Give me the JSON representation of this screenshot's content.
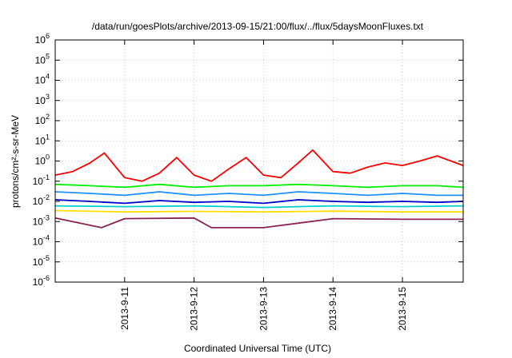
{
  "chart_data": {
    "type": "line",
    "title": "/data/run/goesPlots/archive/2013-09-15/21:00/flux/../flux/5daysMoonFluxes.txt",
    "xlabel": "Coordinated Universal Time (UTC)",
    "ylabel": "protons/cm²-s-sr-MeV",
    "y_scale": "log",
    "ylim": [
      1e-06,
      1000000.0
    ],
    "xlim": [
      "2013-09-10 00:00",
      "2013-09-15 21:00"
    ],
    "grid": true,
    "legend": "none",
    "y_ticks": [
      {
        "base": "10",
        "exp": "-6",
        "value": 1e-06
      },
      {
        "base": "10",
        "exp": "-5",
        "value": 1e-05
      },
      {
        "base": "10",
        "exp": "-4",
        "value": 0.0001
      },
      {
        "base": "10",
        "exp": "-3",
        "value": 0.001
      },
      {
        "base": "10",
        "exp": "-2",
        "value": 0.01
      },
      {
        "base": "10",
        "exp": "-1",
        "value": 0.1
      },
      {
        "base": "10",
        "exp": "0",
        "value": 1
      },
      {
        "base": "10",
        "exp": "1",
        "value": 10
      },
      {
        "base": "10",
        "exp": "2",
        "value": 100
      },
      {
        "base": "10",
        "exp": "3",
        "value": 1000
      },
      {
        "base": "10",
        "exp": "4",
        "value": 10000
      },
      {
        "base": "10",
        "exp": "5",
        "value": 100000
      },
      {
        "base": "10",
        "exp": "6",
        "value": 1000000
      }
    ],
    "x_ticks": [
      {
        "label": "2013-9-11",
        "date": "2013-09-11 00:00"
      },
      {
        "label": "2013-9-12",
        "date": "2013-09-12 00:00"
      },
      {
        "label": "2013-9-13",
        "date": "2013-09-13 00:00"
      },
      {
        "label": "2013-9-14",
        "date": "2013-09-14 00:00"
      },
      {
        "label": "2013-9-15",
        "date": "2013-09-15 00:00"
      }
    ],
    "series": [
      {
        "color": "#ff0000",
        "x": [
          "2013-09-10 00:00",
          "2013-09-10 06:00",
          "2013-09-10 12:00",
          "2013-09-10 17:00",
          "2013-09-11 00:00",
          "2013-09-11 06:00",
          "2013-09-11 12:00",
          "2013-09-11 18:00",
          "2013-09-12 00:00",
          "2013-09-12 06:00",
          "2013-09-12 12:00",
          "2013-09-12 18:00",
          "2013-09-13 00:00",
          "2013-09-13 06:00",
          "2013-09-13 12:00",
          "2013-09-13 17:00",
          "2013-09-14 00:00",
          "2013-09-14 06:00",
          "2013-09-14 12:00",
          "2013-09-14 18:00",
          "2013-09-15 00:00",
          "2013-09-15 06:00",
          "2013-09-15 12:00",
          "2013-09-15 21:00"
        ],
        "y": [
          0.2,
          0.3,
          0.8,
          2.5,
          0.15,
          0.1,
          0.25,
          1.5,
          0.2,
          0.1,
          0.4,
          1.5,
          0.2,
          0.15,
          0.8,
          3.5,
          0.3,
          0.25,
          0.5,
          0.8,
          0.6,
          1.0,
          1.8,
          0.6
        ]
      },
      {
        "color": "#00ee00",
        "x": [
          "2013-09-10 00:00",
          "2013-09-10 12:00",
          "2013-09-11 00:00",
          "2013-09-11 12:00",
          "2013-09-12 00:00",
          "2013-09-12 12:00",
          "2013-09-13 00:00",
          "2013-09-13 12:00",
          "2013-09-14 00:00",
          "2013-09-14 12:00",
          "2013-09-15 00:00",
          "2013-09-15 12:00",
          "2013-09-15 21:00"
        ],
        "y": [
          0.07,
          0.06,
          0.05,
          0.07,
          0.05,
          0.06,
          0.06,
          0.07,
          0.06,
          0.05,
          0.06,
          0.06,
          0.05
        ]
      },
      {
        "color": "#1e90ff",
        "x": [
          "2013-09-10 00:00",
          "2013-09-10 12:00",
          "2013-09-11 00:00",
          "2013-09-11 12:00",
          "2013-09-12 00:00",
          "2013-09-12 12:00",
          "2013-09-13 00:00",
          "2013-09-13 12:00",
          "2013-09-14 00:00",
          "2013-09-14 12:00",
          "2013-09-15 00:00",
          "2013-09-15 12:00",
          "2013-09-15 21:00"
        ],
        "y": [
          0.03,
          0.025,
          0.02,
          0.03,
          0.02,
          0.025,
          0.02,
          0.03,
          0.025,
          0.02,
          0.025,
          0.02,
          0.02
        ]
      },
      {
        "color": "#0000cc",
        "x": [
          "2013-09-10 00:00",
          "2013-09-10 12:00",
          "2013-09-11 00:00",
          "2013-09-11 12:00",
          "2013-09-12 00:00",
          "2013-09-12 12:00",
          "2013-09-13 00:00",
          "2013-09-13 12:00",
          "2013-09-14 00:00",
          "2013-09-14 12:00",
          "2013-09-15 00:00",
          "2013-09-15 12:00",
          "2013-09-15 21:00"
        ],
        "y": [
          0.012,
          0.01,
          0.008,
          0.011,
          0.009,
          0.01,
          0.008,
          0.012,
          0.01,
          0.009,
          0.01,
          0.009,
          0.01
        ]
      },
      {
        "color": "#00cccc",
        "x": [
          "2013-09-10 00:00",
          "2013-09-11 00:00",
          "2013-09-12 00:00",
          "2013-09-13 00:00",
          "2013-09-14 00:00",
          "2013-09-15 00:00",
          "2013-09-15 21:00"
        ],
        "y": [
          0.006,
          0.0055,
          0.006,
          0.005,
          0.006,
          0.0055,
          0.006
        ]
      },
      {
        "color": "#ffdd00",
        "x": [
          "2013-09-10 00:00",
          "2013-09-11 00:00",
          "2013-09-12 00:00",
          "2013-09-13 00:00",
          "2013-09-14 00:00",
          "2013-09-15 00:00",
          "2013-09-15 21:00"
        ],
        "y": [
          0.0035,
          0.003,
          0.0032,
          0.003,
          0.0033,
          0.003,
          0.003
        ]
      },
      {
        "color": "#8b2252",
        "x": [
          "2013-09-10 00:00",
          "2013-09-10 16:00",
          "2013-09-11 00:00",
          "2013-09-12 00:00",
          "2013-09-12 06:00",
          "2013-09-13 00:00",
          "2013-09-14 00:00",
          "2013-09-15 00:00",
          "2013-09-15 21:00"
        ],
        "y": [
          0.0015,
          0.0005,
          0.0014,
          0.0015,
          0.0005,
          0.0005,
          0.0014,
          0.0013,
          0.0013
        ]
      }
    ]
  }
}
